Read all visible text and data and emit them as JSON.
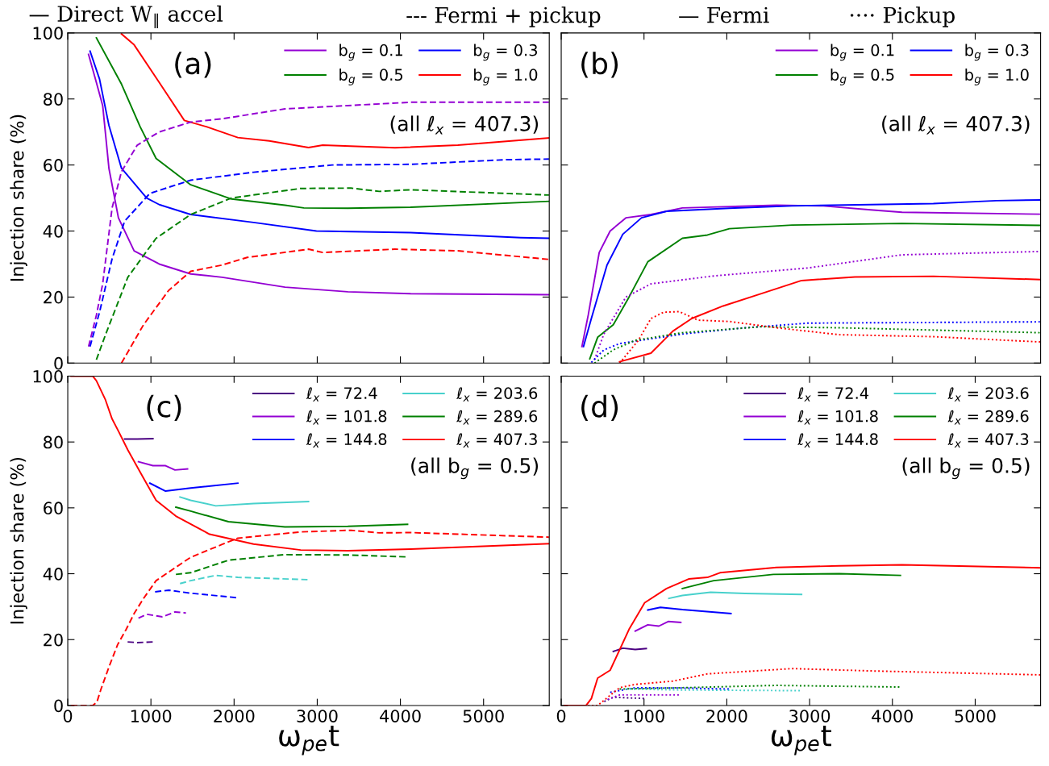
{
  "chart_data": [
    {
      "type": "line",
      "ylabel": "Injection share (%)",
      "xlim": [
        0,
        5790
      ],
      "xticks": [
        0,
        1000,
        2000,
        3000,
        4000,
        5000
      ],
      "ylim": [
        0,
        100
      ],
      "yticks": [
        0,
        20,
        40,
        60,
        80,
        100
      ],
      "tick_labels": "y",
      "grid": false,
      "legend": "top right",
      "annotations": [
        "(a)",
        "(all ℓ$_{x}$ = 407.3)",
        "— Direct W$_{∥}$ accel",
        "--- Fermi + pickup"
      ],
      "series": [
        {
          "name": "b$_{g}$ = 0.1",
          "color": "#9400d3",
          "line_style": "solid",
          "x": [
            250,
            344,
            420,
            495,
            609,
            798,
            1100,
            1478,
            1856,
            2612,
            3368,
            4124,
            5787
          ],
          "values": [
            93.5,
            85,
            78,
            59,
            44,
            34,
            30,
            27,
            26,
            23,
            21.6,
            21,
            20.7
          ]
        },
        {
          "name": "b$_{g}$ = 0.5",
          "color": "#008000",
          "line_style": "solid",
          "x": [
            344,
            646,
            870,
            1062,
            1478,
            1969,
            2612,
            2839,
            3368,
            4124,
            5787
          ],
          "values": [
            98.5,
            84.5,
            71.6,
            62,
            54,
            49.7,
            47.8,
            47,
            46.9,
            47.2,
            49
          ]
        },
        {
          "name": "b$_{g}$ = 0.3",
          "color": "#0000ff",
          "line_style": "solid",
          "x": [
            268,
            382,
            495,
            646,
            949,
            1100,
            1478,
            2234,
            2990,
            4124,
            5447,
            5787
          ],
          "values": [
            94.5,
            86,
            72,
            59,
            50,
            48,
            45,
            42.6,
            40,
            39.5,
            38,
            37.8
          ]
        },
        {
          "name": "b$_{g}$ = 1.0",
          "color": "#ff0000",
          "line_style": "solid",
          "x": [
            646,
            798,
            1100,
            1402,
            1667,
            2045,
            2423,
            2895,
            3066,
            3935,
            4691,
            5787
          ],
          "values": [
            99.7,
            96.4,
            85,
            73.5,
            71.6,
            68.3,
            67.3,
            65.3,
            66,
            65.2,
            66,
            68.2
          ]
        },
        {
          "color": "#9400d3",
          "line_style": "dashed",
          "x": [
            250,
            344,
            420,
            533,
            646,
            835,
            1100,
            1478,
            1856,
            2612,
            3368,
            4124,
            5787
          ],
          "values": [
            5,
            14.5,
            24,
            47,
            58,
            66,
            70,
            73,
            74,
            77,
            78,
            79,
            79
          ]
        },
        {
          "color": "#0000ff",
          "line_style": "dashed",
          "x": [
            268,
            382,
            533,
            684,
            987,
            1478,
            2234,
            3179,
            4124,
            5258,
            5787
          ],
          "values": [
            5,
            15.4,
            31.6,
            43,
            51.4,
            55.4,
            57.8,
            60,
            60.2,
            61.6,
            61.8
          ]
        },
        {
          "color": "#008000",
          "line_style": "dashed",
          "x": [
            344,
            457,
            722,
            1062,
            1478,
            1969,
            2801,
            3406,
            3746,
            4124,
            5787
          ],
          "values": [
            1,
            8.8,
            26,
            37.8,
            45,
            50,
            52.9,
            53,
            52,
            52.5,
            50.9
          ]
        },
        {
          "color": "#ff0000",
          "line_style": "dashed",
          "x": [
            646,
            911,
            1213,
            1478,
            1856,
            2158,
            2895,
            3066,
            3935,
            4691,
            5787
          ],
          "values": [
            0,
            11.6,
            22,
            27.8,
            29.7,
            32,
            34.5,
            33.5,
            34.5,
            34,
            31.4
          ]
        }
      ]
    },
    {
      "type": "line",
      "xlim": [
        0,
        5790
      ],
      "xticks": [
        0,
        1000,
        2000,
        3000,
        4000,
        5000
      ],
      "ylim": [
        0,
        100
      ],
      "yticks": [
        0,
        20,
        40,
        60,
        80,
        100
      ],
      "tick_labels": false,
      "grid": false,
      "legend": "top right",
      "annotations": [
        "(b)",
        "(all ℓ$_{x}$ = 407.3)",
        "— Fermi",
        "···· Pickup"
      ],
      "series": [
        {
          "name": "b$_{g}$ = 0.1",
          "color": "#9400d3",
          "line_style": "solid",
          "x": [
            250,
            326,
            459,
            591,
            781,
            1084,
            1463,
            2600,
            3168,
            3737,
            4116,
            5784
          ],
          "values": [
            5,
            14.5,
            33.5,
            40,
            44,
            45,
            47,
            47.8,
            47.6,
            46.4,
            45.7,
            45.1
          ]
        },
        {
          "name": "b$_{g}$ = 0.5",
          "color": "#008000",
          "line_style": "solid",
          "x": [
            345,
            440,
            629,
            819,
            1046,
            1463,
            1766,
            2031,
            2789,
            4116,
            5784
          ],
          "values": [
            1.3,
            7.8,
            11.6,
            20,
            30.7,
            37.8,
            38.8,
            40.7,
            41.8,
            42.3,
            41.7
          ]
        },
        {
          "name": "b$_{g}$ = 0.3",
          "color": "#0000ff",
          "line_style": "solid",
          "x": [
            269,
            364,
            553,
            743,
            970,
            1273,
            2031,
            2789,
            3737,
            4495,
            5253,
            5784
          ],
          "values": [
            5,
            13.5,
            29.7,
            39,
            44,
            46,
            46.9,
            47.6,
            48,
            48.3,
            49.2,
            49.4
          ]
        },
        {
          "name": "b$_{g}$ = 1.0",
          "color": "#ff0000",
          "line_style": "solid",
          "x": [
            705,
            1084,
            1349,
            1577,
            1956,
            2410,
            2903,
            3547,
            4495,
            5784
          ],
          "values": [
            0.4,
            3,
            9.7,
            13.5,
            17.3,
            21,
            25,
            26.1,
            26.3,
            25.3
          ]
        },
        {
          "color": "#9400d3",
          "line_style": "dotted",
          "x": [
            402,
            515,
            781,
            1084,
            1842,
            2979,
            4116,
            5784
          ],
          "values": [
            1,
            8.8,
            20,
            24,
            26.4,
            28.8,
            32.8,
            33.8
          ]
        },
        {
          "color": "#0000ff",
          "line_style": "dotted",
          "x": [
            364,
            515,
            705,
            1463,
            2221,
            2979,
            5784
          ],
          "values": [
            0.2,
            4,
            5.9,
            8.8,
            10.7,
            12.1,
            12.5
          ]
        },
        {
          "color": "#008000",
          "line_style": "dotted",
          "x": [
            402,
            629,
            894,
            1463,
            2410,
            3358,
            5784
          ],
          "values": [
            0,
            4,
            6.9,
            9.2,
            11,
            10.7,
            9.2
          ]
        },
        {
          "color": "#ff0000",
          "line_style": "dotted",
          "x": [
            705,
            932,
            1084,
            1236,
            1425,
            1652,
            2031,
            2600,
            3358,
            4495,
            5784
          ],
          "values": [
            0,
            6.9,
            13.5,
            15.4,
            15.6,
            13,
            12.6,
            10.7,
            8.6,
            8,
            6.4
          ]
        }
      ]
    },
    {
      "type": "line",
      "xlabel": "ω$_{pe}$t",
      "ylabel": "Injection share (%)",
      "xlim": [
        0,
        5790
      ],
      "xticks": [
        0,
        1000,
        2000,
        3000,
        4000,
        5000
      ],
      "ylim": [
        0,
        100
      ],
      "yticks": [
        0,
        20,
        40,
        60,
        80,
        100
      ],
      "grid": false,
      "legend": "top right",
      "annotations": [
        "(c)",
        "(all b$_{g}$ = 0.5)"
      ],
      "series": [
        {
          "name": "ℓ$_{x}$ = 72.4",
          "color": "#4b0082",
          "line_style": "solid",
          "x": [
            684,
            835,
            1024
          ],
          "values": [
            80.9,
            80.9,
            81
          ]
        },
        {
          "name": "ℓ$_{x}$ = 101.8",
          "color": "#9400d3",
          "line_style": "solid",
          "x": [
            850,
            1024,
            1176,
            1289,
            1440
          ],
          "values": [
            74,
            72.8,
            72.8,
            71.5,
            71.8
          ]
        },
        {
          "name": "ℓ$_{x}$ = 144.8",
          "color": "#0000ff",
          "line_style": "solid",
          "x": [
            987,
            1176,
            1478,
            2045
          ],
          "values": [
            67.5,
            65.1,
            66,
            67.5
          ]
        },
        {
          "name": "ℓ$_{x}$ = 203.6",
          "color": "#48d1cc",
          "line_style": "solid",
          "x": [
            1350,
            1478,
            1780,
            2234,
            2895
          ],
          "values": [
            63.3,
            62.3,
            60.6,
            61.3,
            61.9
          ]
        },
        {
          "name": "ℓ$_{x}$ = 289.6",
          "color": "#008000",
          "line_style": "solid",
          "x": [
            1300,
            1478,
            1932,
            2612,
            3368,
            4086
          ],
          "values": [
            60.2,
            59,
            55.8,
            54.2,
            54.4,
            55
          ]
        },
        {
          "name": "ℓ$_{x}$ = 407.3",
          "color": "#ff0000",
          "line_style": "solid",
          "x": [
            40,
            300,
            344,
            450,
            533,
            609,
            722,
            911,
            1062,
            1300,
            1705,
            2234,
            2801,
            3368,
            4124,
            5787
          ],
          "values": [
            100,
            100,
            98.6,
            93,
            87,
            83.3,
            77.6,
            69,
            62.3,
            57.5,
            52,
            49,
            47.2,
            47,
            47.5,
            49.1
          ]
        },
        {
          "color": "#4b0082",
          "line_style": "dashed",
          "x": [
            720,
            835,
            1024
          ],
          "values": [
            19.3,
            19.1,
            19.3
          ]
        },
        {
          "color": "#9400d3",
          "line_style": "dashed",
          "x": [
            850,
            949,
            1138,
            1289,
            1421
          ],
          "values": [
            26.5,
            27.7,
            26.9,
            28.4,
            28.1
          ]
        },
        {
          "color": "#0000ff",
          "line_style": "dashed",
          "x": [
            1050,
            1213,
            1478,
            2045
          ],
          "values": [
            34.5,
            35,
            34.1,
            32.7
          ]
        },
        {
          "color": "#48d1cc",
          "line_style": "dashed",
          "x": [
            1350,
            1478,
            1780,
            2045,
            2895
          ],
          "values": [
            37,
            37.9,
            39.5,
            38.9,
            38.2
          ]
        },
        {
          "color": "#008000",
          "line_style": "dashed",
          "x": [
            1300,
            1478,
            1932,
            2612,
            3368,
            4086
          ],
          "values": [
            39.8,
            40.3,
            44.1,
            45.8,
            45.7,
            45.1
          ]
        },
        {
          "color": "#ff0000",
          "line_style": "dashed",
          "x": [
            40,
            300,
            350,
            400,
            500,
            600,
            700,
            800,
            911,
            1062,
            1478,
            1856,
            2045,
            2801,
            3406,
            3746,
            4124,
            5787
          ],
          "values": [
            0,
            0,
            1,
            5,
            12,
            18.5,
            23,
            28,
            32.5,
            37.9,
            45,
            48.9,
            50.8,
            52.7,
            53.2,
            52.4,
            52.5,
            51.1
          ]
        }
      ]
    },
    {
      "type": "line",
      "xlabel": "ω$_{pe}$t",
      "xlim": [
        0,
        5790
      ],
      "xticks": [
        0,
        1000,
        2000,
        3000,
        4000,
        5000
      ],
      "ylim": [
        0,
        100
      ],
      "yticks": [
        0,
        20,
        40,
        60,
        80,
        100
      ],
      "tick_labels": "x",
      "grid": false,
      "legend": "top right",
      "annotations": [
        "(d)",
        "(all b$_{g}$ = 0.5)"
      ],
      "series": [
        {
          "name": "ℓ$_{x}$ = 72.4",
          "color": "#4b0082",
          "line_style": "solid",
          "x": [
            629,
            743,
            894,
            1027
          ],
          "values": [
            16.4,
            17.4,
            17,
            17.3
          ]
        },
        {
          "name": "ℓ$_{x}$ = 101.8",
          "color": "#9400d3",
          "line_style": "solid",
          "x": [
            894,
            1046,
            1179,
            1292,
            1444
          ],
          "values": [
            22.6,
            24.5,
            24.1,
            25.5,
            25.2
          ]
        },
        {
          "name": "ℓ$_{x}$ = 144.8",
          "color": "#0000ff",
          "line_style": "solid",
          "x": [
            1046,
            1198,
            1463,
            2050
          ],
          "values": [
            29,
            29.8,
            29.1,
            27.9
          ]
        },
        {
          "name": "ℓ$_{x}$ = 203.6",
          "color": "#48d1cc",
          "line_style": "solid",
          "x": [
            1300,
            1463,
            1804,
            2221,
            2903
          ],
          "values": [
            32.5,
            33.4,
            34.4,
            34,
            33.7
          ]
        },
        {
          "name": "ℓ$_{x}$ = 289.6",
          "color": "#008000",
          "line_style": "solid",
          "x": [
            1463,
            1842,
            2562,
            3358,
            4097
          ],
          "values": [
            35.5,
            37.9,
            39.8,
            40,
            39.5
          ]
        },
        {
          "name": "ℓ$_{x}$ = 407.3",
          "color": "#ff0000",
          "line_style": "solid",
          "x": [
            40,
            300,
            364,
            440,
            591,
            819,
            1008,
            1273,
            1539,
            1766,
            1918,
            2600,
            3358,
            4116,
            5784
          ],
          "values": [
            0,
            0,
            2.1,
            8.3,
            10.7,
            23.1,
            31.2,
            35.5,
            38.4,
            38.9,
            40.3,
            41.9,
            42.4,
            42.7,
            41.8
          ]
        },
        {
          "color": "#4b0082",
          "line_style": "dotted",
          "x": [
            520,
            629,
            1027
          ],
          "values": [
            1.2,
            2.5,
            2.1
          ]
        },
        {
          "color": "#9400d3",
          "line_style": "dotted",
          "x": [
            560,
            705,
            1444
          ],
          "values": [
            1.8,
            3.2,
            3.2
          ]
        },
        {
          "color": "#0000ff",
          "line_style": "dotted",
          "x": [
            591,
            894,
            1463,
            2031
          ],
          "values": [
            4,
            5.4,
            5.3,
            5
          ]
        },
        {
          "color": "#48d1cc",
          "line_style": "dotted",
          "x": [
            781,
            1463,
            2884
          ],
          "values": [
            5,
            4.7,
            4.5
          ]
        },
        {
          "color": "#008000",
          "line_style": "dotted",
          "x": [
            705,
            1463,
            2600,
            4097
          ],
          "values": [
            5,
            5.4,
            6.1,
            5.6
          ]
        },
        {
          "color": "#ff0000",
          "line_style": "dotted",
          "x": [
            40,
            440,
            705,
            894,
            1349,
            1766,
            2789,
            3737,
            5784
          ],
          "values": [
            0,
            0,
            5.4,
            6.4,
            7.4,
            9.6,
            11.2,
            10.5,
            9.3
          ]
        }
      ]
    }
  ]
}
